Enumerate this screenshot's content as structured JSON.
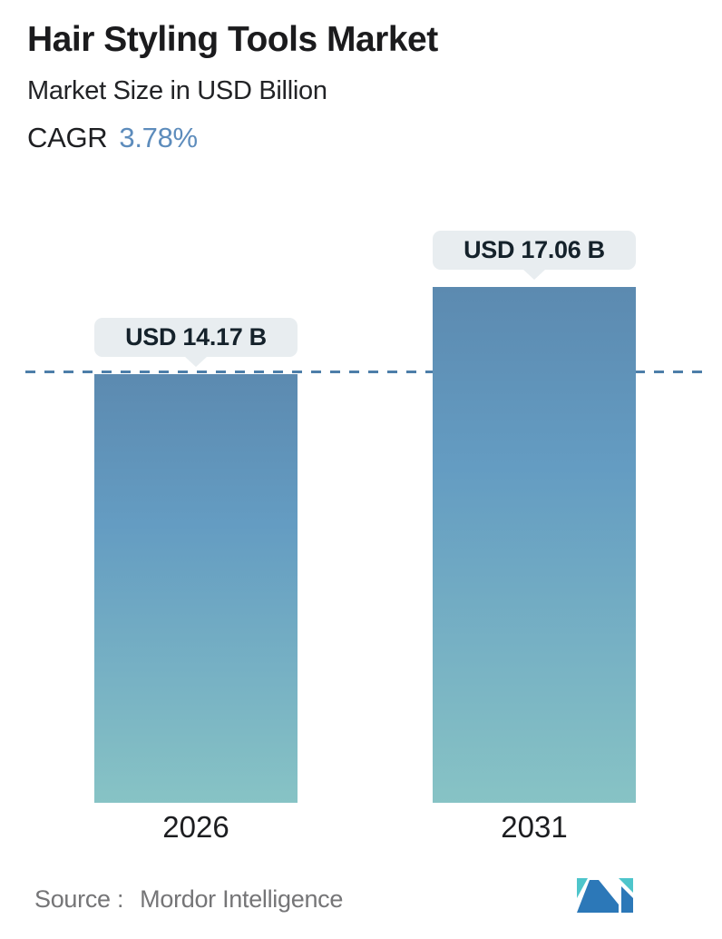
{
  "header": {
    "title": "Hair Styling Tools Market",
    "subtitle": "Market Size in USD Billion",
    "cagr_label": "CAGR",
    "cagr_value": "3.78%"
  },
  "chart_data": {
    "type": "bar",
    "title": "Hair Styling Tools Market",
    "subtitle": "Market Size in USD Billion",
    "unit": "USD Billion",
    "cagr_percent": 3.78,
    "categories": [
      "2026",
      "2031"
    ],
    "values": [
      14.17,
      17.06
    ],
    "value_labels": [
      "USD 14.17 B",
      "USD 17.06 B"
    ],
    "reference_line": {
      "style": "dashed",
      "at_value": 14.17,
      "orientation": "horizontal"
    },
    "ylim": [
      0,
      20
    ],
    "grid": false,
    "legend": false,
    "colors": {
      "bar_top": "#5C8AB0",
      "bar_mid": "#649CC2",
      "bar_bottom": "#87C3C5",
      "dashed_line": "#4D7EA9",
      "tooltip_bg": "#E8EDF0",
      "accent_blue": "#5D8CBC",
      "text_dark": "#1B1B1D",
      "source_gray": "#757577"
    }
  },
  "footer": {
    "source_label": "Source :",
    "source_name": "Mordor Intelligence",
    "logo": {
      "name": "mordor-intelligence-logo",
      "blue": "#2C78B8",
      "teal": "#4EC5CB"
    }
  }
}
